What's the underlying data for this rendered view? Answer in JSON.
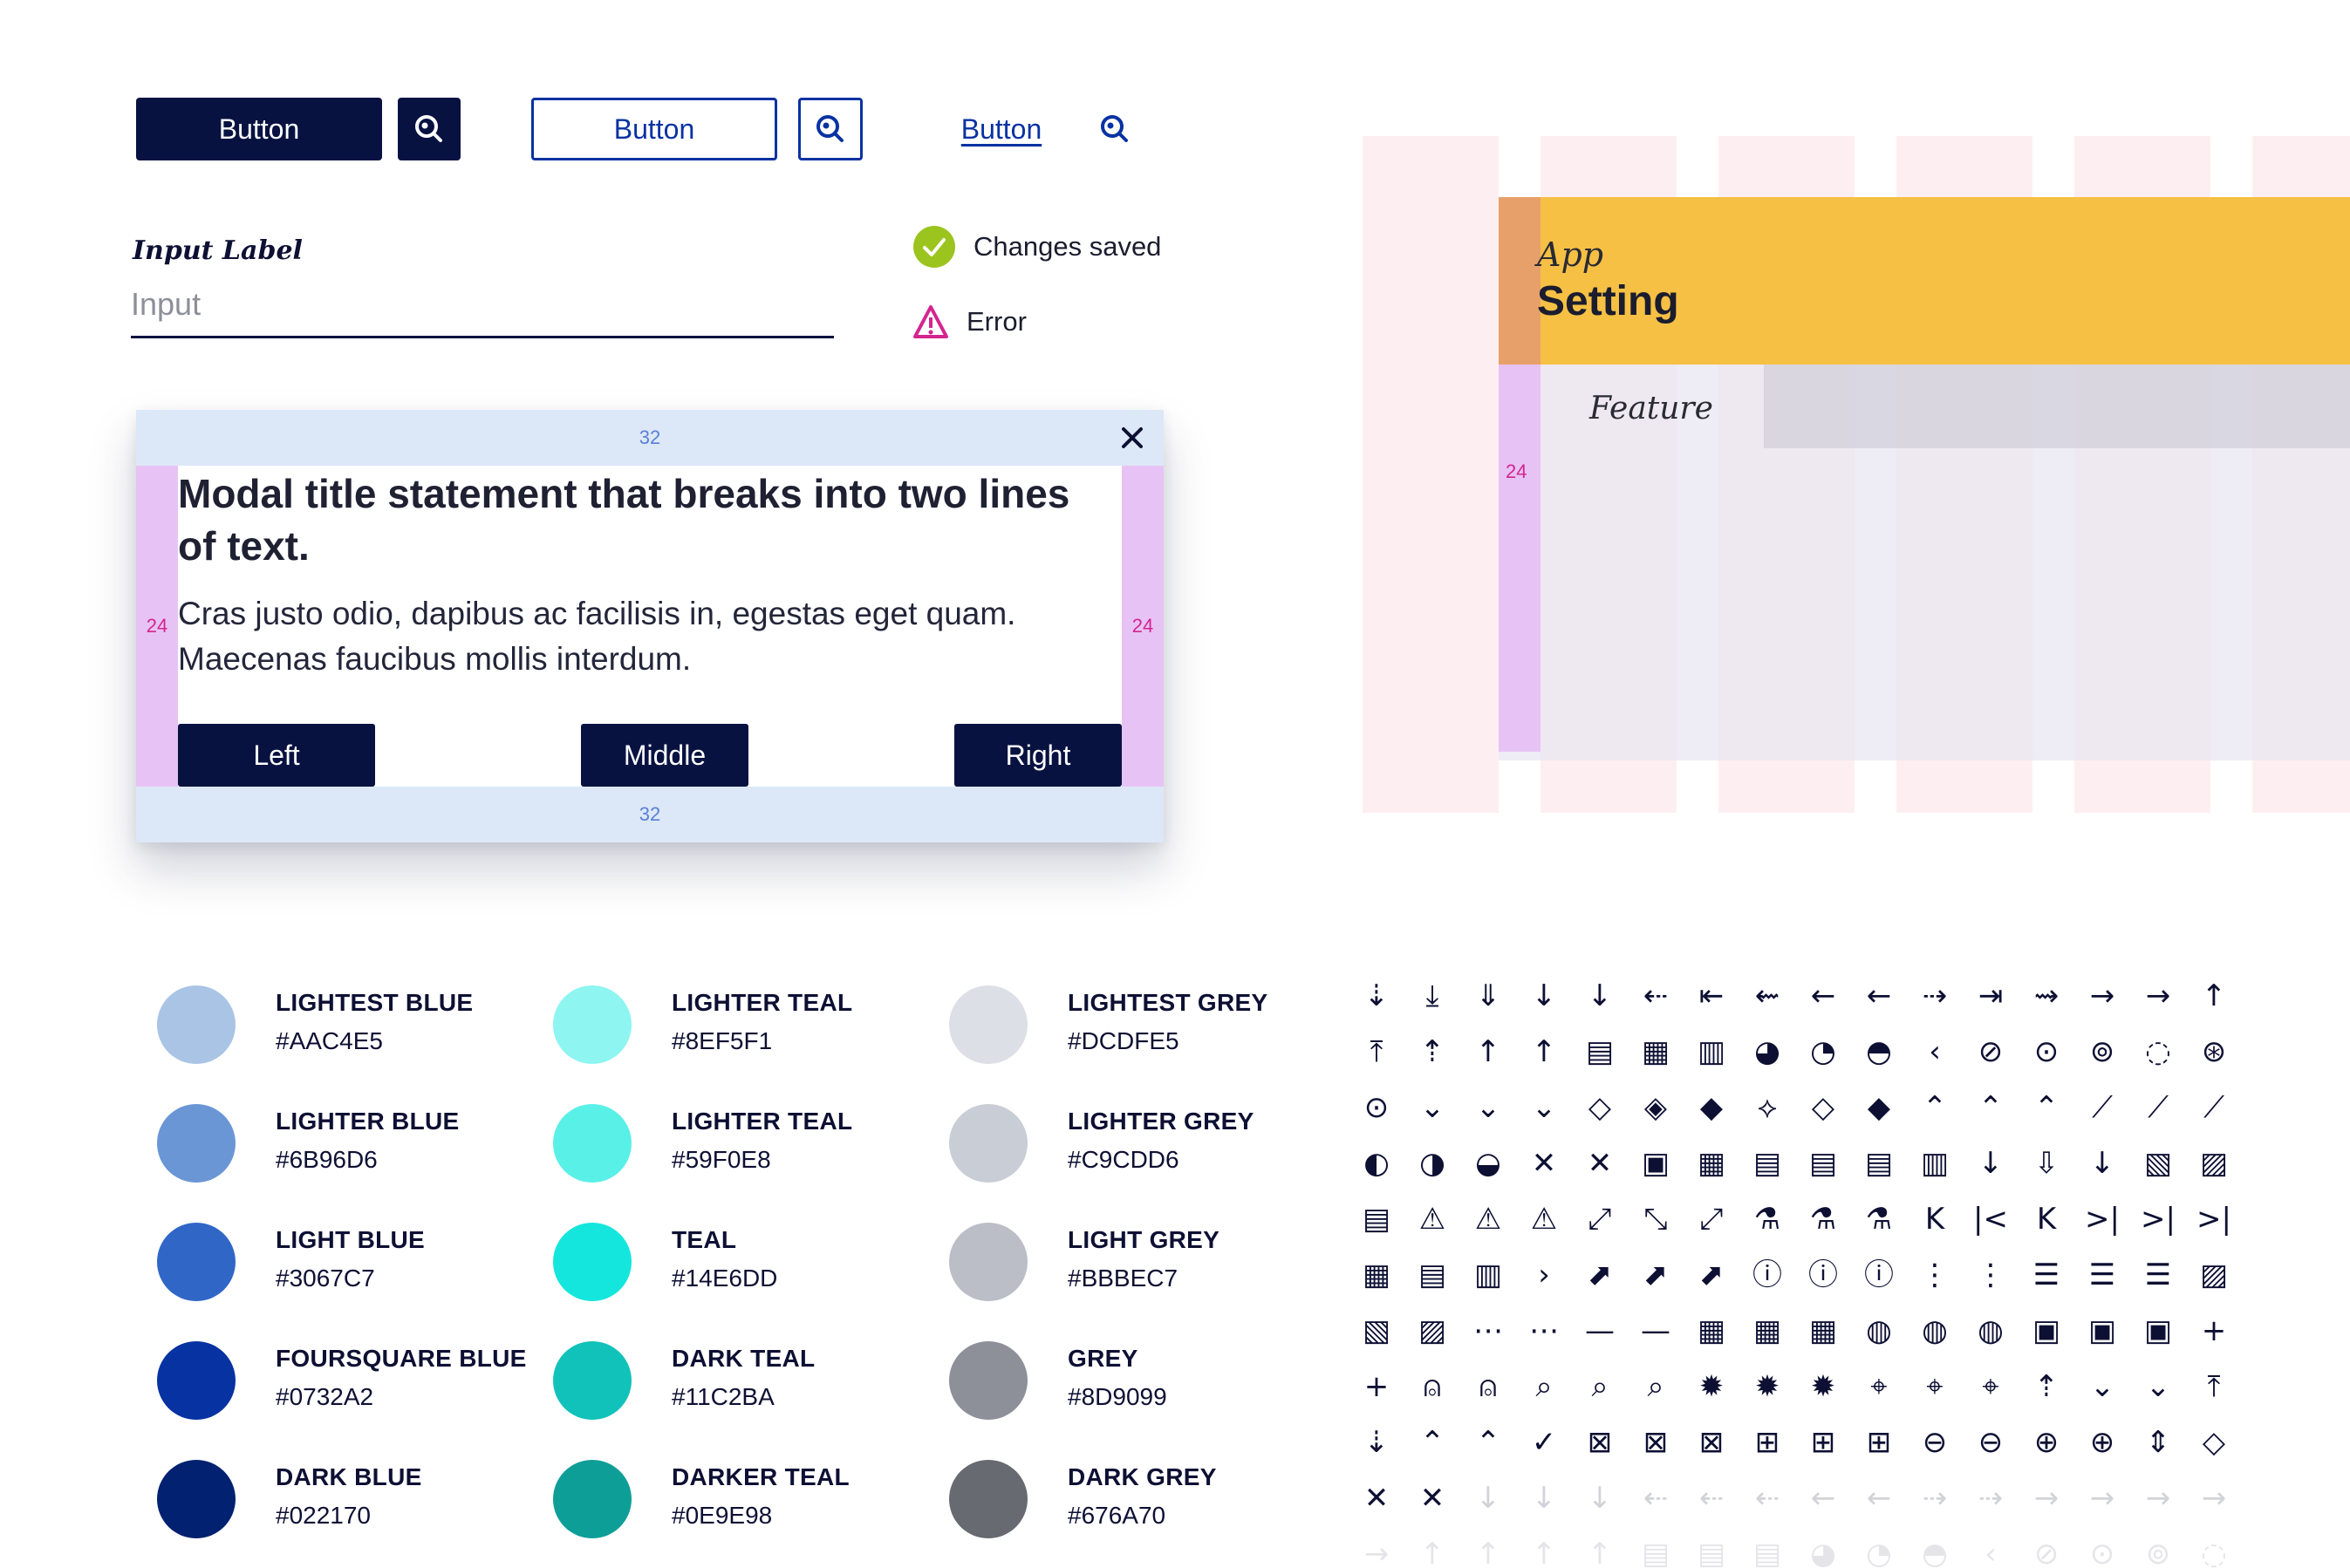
{
  "buttons": {
    "primary_label": "Button",
    "secondary_label": "Button",
    "tertiary_label": "Button",
    "icon": "search-icon"
  },
  "input": {
    "label": "Input Label",
    "placeholder": "Input"
  },
  "status": {
    "success_text": "Changes saved",
    "success_icon": "check-circle-icon",
    "error_text": "Error",
    "error_icon": "warning-triangle-icon"
  },
  "modal": {
    "padding_top": "32",
    "padding_bottom": "32",
    "padding_left": "24",
    "padding_right": "24",
    "title": "Modal title statement that breaks into two lines of text.",
    "body": "Cras justo odio, dapibus ac facilisis in, egestas eget quam. Maecenas faucibus mollis interdum.",
    "left_button": "Left",
    "middle_button": "Middle",
    "right_button": "Right",
    "close_icon": "close-icon"
  },
  "layout_diagram": {
    "app_label": "App",
    "setting_label": "Setting",
    "feature_label": "Feature",
    "gutter_value": "24"
  },
  "colors": [
    {
      "name": "LIGHTEST BLUE",
      "hex": "#AAC4E5"
    },
    {
      "name": "LIGHTER BLUE",
      "hex": "#6B96D6"
    },
    {
      "name": "LIGHT BLUE",
      "hex": "#3067C7"
    },
    {
      "name": "FOURSQUARE BLUE",
      "hex": "#0732A2"
    },
    {
      "name": "DARK BLUE",
      "hex": "#022170"
    },
    {
      "name": "LIGHTER TEAL",
      "hex": "#8EF5F1"
    },
    {
      "name": "LIGHTER TEAL",
      "hex": "#59F0E8"
    },
    {
      "name": "TEAL",
      "hex": "#14E6DD"
    },
    {
      "name": "DARK TEAL",
      "hex": "#11C2BA"
    },
    {
      "name": "DARKER TEAL",
      "hex": "#0E9E98"
    },
    {
      "name": "LIGHTEST GREY",
      "hex": "#DCDFE5"
    },
    {
      "name": "LIGHTER GREY",
      "hex": "#C9CDD6"
    },
    {
      "name": "LIGHT GREY",
      "hex": "#BBBEC7"
    },
    {
      "name": "GREY",
      "hex": "#8D9099"
    },
    {
      "name": "DARK GREY",
      "hex": "#676A70"
    }
  ],
  "icons": [
    [
      "⇣",
      "⤓",
      "⇓",
      "↓",
      "↓",
      "⇠",
      "⇤",
      "⇜",
      "←",
      "←",
      "⇢",
      "⇥",
      "⇝",
      "→",
      "→",
      "↑"
    ],
    [
      "⤒",
      "⇡",
      "↑",
      "↑",
      "▤",
      "▦",
      "▥",
      "◕",
      "◔",
      "◓",
      "‹",
      "⊘",
      "⊙",
      "⊚",
      "◌",
      "⊛"
    ],
    [
      "⊙",
      "⌄",
      "⌄",
      "⌄",
      "◇",
      "◈",
      "◆",
      "⟡",
      "◇",
      "◆",
      "⌃",
      "⌃",
      "⌃",
      "⟋",
      "⟋",
      "⟋"
    ],
    [
      "◐",
      "◑",
      "◒",
      "✕",
      "✕",
      "▣",
      "▦",
      "▤",
      "▤",
      "▤",
      "▥",
      "↓",
      "⇩",
      "↓",
      "▧",
      "▨"
    ],
    [
      "▤",
      "⚠",
      "⚠",
      "⚠",
      "⤢",
      "⤡",
      "⤢",
      "⚗",
      "⚗",
      "⚗",
      "K",
      "|<",
      "K",
      ">|",
      ">|",
      ">|"
    ],
    [
      "▦",
      "▤",
      "▥",
      "›",
      "⬈",
      "⬈",
      "⬈",
      "ⓘ",
      "ⓘ",
      "ⓘ",
      "⋮",
      "⋮",
      "☰",
      "☰",
      "☰",
      "▨"
    ],
    [
      "▧",
      "▨",
      "⋯",
      "⋯",
      "—",
      "—",
      "▦",
      "▦",
      "▦",
      "◍",
      "◍",
      "◍",
      "▣",
      "▣",
      "▣",
      "+"
    ],
    [
      "+",
      "⍝",
      "⍝",
      "⌕",
      "⌕",
      "⌕",
      "✹",
      "✹",
      "✹",
      "⌖",
      "⌖",
      "⌖",
      "⇡",
      "⌄",
      "⌄",
      "⤒"
    ],
    [
      "⇣",
      "⌃",
      "⌃",
      "✓",
      "⊠",
      "⊠",
      "⊠",
      "⊞",
      "⊞",
      "⊞",
      "⊖",
      "⊖",
      "⊕",
      "⊕",
      "⇕",
      "◇"
    ],
    [
      "✕",
      "✕",
      "↓",
      "↓",
      "↓",
      "⇠",
      "⇠",
      "⇠",
      "←",
      "←",
      "⇢",
      "⇢",
      "→",
      "→",
      "→",
      "→"
    ],
    [
      "→",
      "↑",
      "↑",
      "↑",
      "↑",
      "▤",
      "▤",
      "▤",
      "◕",
      "◔",
      "◓",
      "‹",
      "⊘",
      "⊙",
      "⊚",
      "◌"
    ]
  ],
  "palette": {
    "navy": "#071241",
    "blue": "#0732a2",
    "success": "#9bc41f",
    "error": "#d4258f",
    "orange": "#e8a06a",
    "yellow": "#f5c044",
    "purple": "#e7c3f5",
    "pink_col": "#fdecef"
  }
}
